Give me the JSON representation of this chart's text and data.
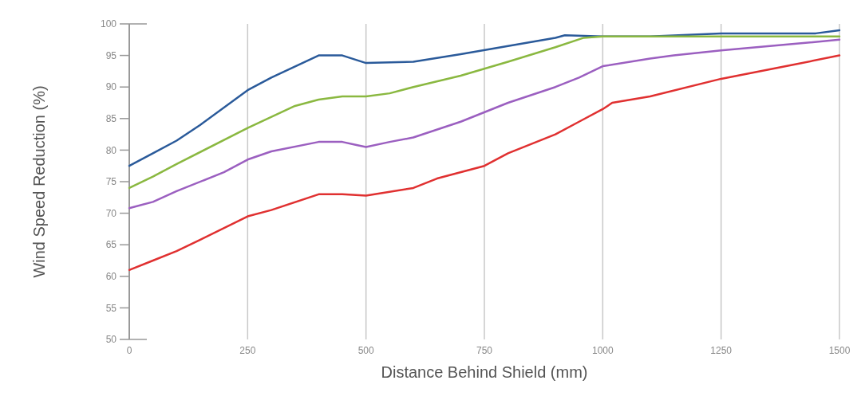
{
  "chart_data": {
    "type": "line",
    "xlabel": "Distance Behind Shield (mm)",
    "ylabel": "Wind Speed Reduction (%)",
    "xlim": [
      0,
      1500
    ],
    "xticks": [
      0,
      250,
      500,
      750,
      1000,
      1250,
      1500
    ],
    "ylim": [
      50,
      100
    ],
    "yticks": [
      50,
      55,
      60,
      65,
      70,
      75,
      80,
      85,
      90,
      95,
      100
    ],
    "grid": "x",
    "line_style": "solid",
    "series": [
      {
        "color": "#2a5a9a",
        "x": [
          0,
          50,
          100,
          150,
          250,
          300,
          400,
          450,
          500,
          600,
          700,
          800,
          900,
          920,
          1000,
          1100,
          1250,
          1450,
          1500
        ],
        "values": [
          77.5,
          79.5,
          81.5,
          84,
          89.5,
          91.5,
          95,
          95,
          93.8,
          94,
          95.2,
          96.5,
          97.8,
          98.2,
          98,
          98,
          98.5,
          98.5,
          99
        ]
      },
      {
        "color": "#8ab840",
        "x": [
          0,
          50,
          100,
          250,
          350,
          400,
          450,
          500,
          550,
          600,
          700,
          800,
          900,
          960,
          1000,
          1500
        ],
        "values": [
          74,
          75.8,
          77.8,
          83.5,
          87,
          88,
          88.5,
          88.5,
          89,
          90,
          91.8,
          94,
          96.3,
          97.8,
          98,
          98
        ]
      },
      {
        "color": "#9b5fc0",
        "x": [
          0,
          50,
          100,
          200,
          250,
          300,
          400,
          450,
          480,
          500,
          550,
          600,
          700,
          800,
          900,
          950,
          1000,
          1100,
          1150,
          1250,
          1400,
          1500
        ],
        "values": [
          70.8,
          71.8,
          73.5,
          76.5,
          78.5,
          79.8,
          81.3,
          81.3,
          80.8,
          80.5,
          81.3,
          82,
          84.5,
          87.5,
          90,
          91.5,
          93.3,
          94.5,
          95,
          95.8,
          96.8,
          97.5
        ]
      },
      {
        "color": "#e03030",
        "x": [
          0,
          50,
          100,
          150,
          250,
          300,
          400,
          450,
          500,
          600,
          650,
          750,
          800,
          900,
          950,
          1000,
          1020,
          1100,
          1250,
          1400,
          1500
        ],
        "values": [
          61,
          62.5,
          64,
          65.8,
          69.5,
          70.5,
          73,
          73,
          72.8,
          74,
          75.5,
          77.5,
          79.5,
          82.5,
          84.5,
          86.5,
          87.5,
          88.5,
          91.3,
          93.5,
          95
        ]
      }
    ]
  }
}
